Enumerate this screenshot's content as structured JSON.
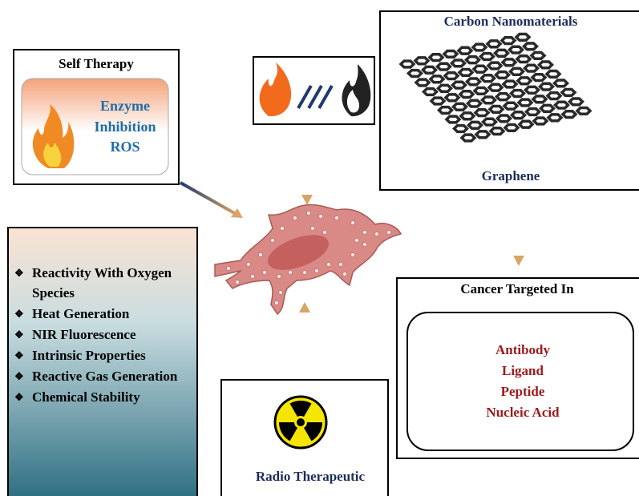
{
  "self_therapy": {
    "title": "Self Therapy",
    "items": [
      "Enzyme",
      "Inhibition",
      "ROS"
    ]
  },
  "carbon": {
    "title": "Carbon Nanomaterials",
    "label": "Graphene"
  },
  "properties": {
    "items": [
      "Reactivity With Oxygen Species",
      "Heat Generation",
      "NIR Fluorescence",
      "Intrinsic Properties",
      "Reactive Gas Generation",
      "Chemical Stability"
    ]
  },
  "cancer": {
    "title": "Cancer Targeted In",
    "items": [
      "Antibody",
      "Ligand",
      "Peptide",
      "Nucleic Acid"
    ]
  },
  "radio": {
    "title": "Radio Therapeutic"
  }
}
